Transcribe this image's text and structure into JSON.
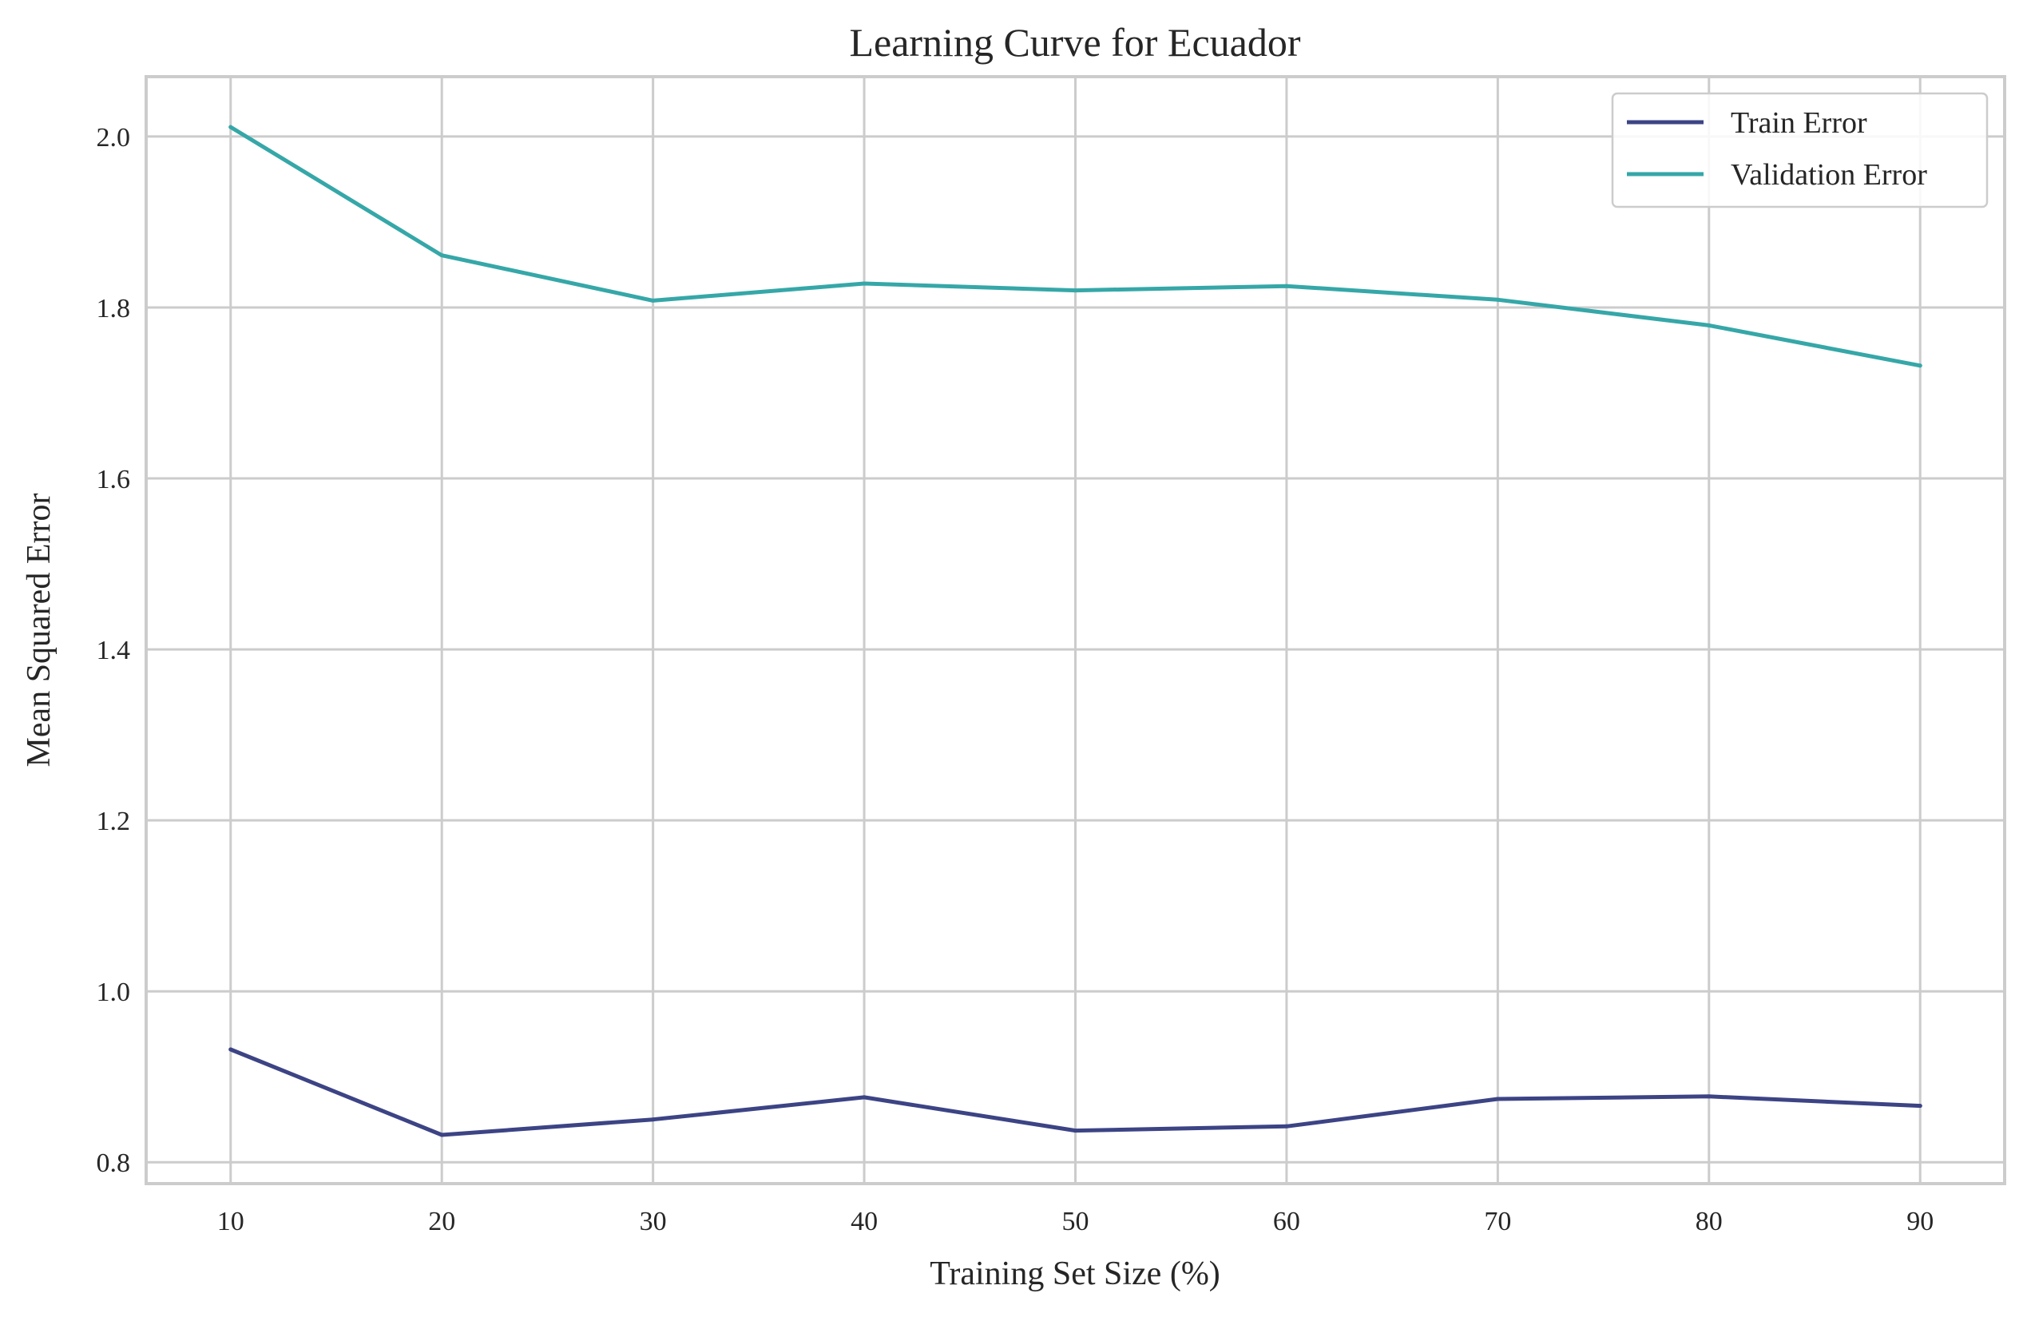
{
  "chart_data": {
    "type": "line",
    "title": "Learning Curve for Ecuador",
    "xlabel": "Training Set Size (%)",
    "ylabel": "Mean Squared Error",
    "x": [
      10,
      20,
      30,
      40,
      50,
      60,
      70,
      80,
      90
    ],
    "xticks": [
      10,
      20,
      30,
      40,
      50,
      60,
      70,
      80,
      90
    ],
    "yticks": [
      0.8,
      1.0,
      1.2,
      1.4,
      1.6,
      1.8,
      2.0
    ],
    "xlim": [
      6,
      94
    ],
    "ylim": [
      0.775,
      2.07
    ],
    "grid": true,
    "legend_position": "top-right",
    "series": [
      {
        "name": "Train Error",
        "color": "#3c4485",
        "values": [
          0.932,
          0.832,
          0.85,
          0.876,
          0.837,
          0.842,
          0.874,
          0.877,
          0.866
        ]
      },
      {
        "name": "Validation Error",
        "color": "#36a7a8",
        "values": [
          2.011,
          1.861,
          1.808,
          1.828,
          1.82,
          1.825,
          1.809,
          1.779,
          1.732
        ]
      }
    ]
  }
}
